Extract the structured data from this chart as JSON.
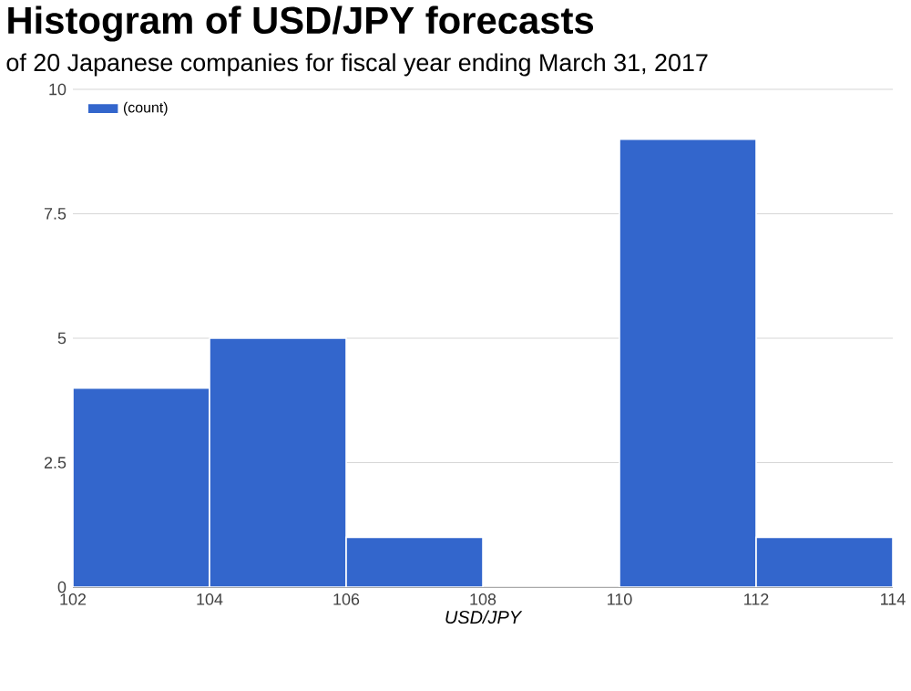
{
  "chart_data": {
    "type": "histogram",
    "title": "Histogram of USD/JPY forecasts",
    "subtitle": "of 20 Japanese companies for fiscal year ending March 31, 2017",
    "xlabel": "USD/JPY",
    "bins": [
      102,
      104,
      106,
      108,
      110,
      112,
      114
    ],
    "series": [
      {
        "name": "(count)",
        "color": "#3366cc",
        "values": [
          4,
          5,
          1,
          0,
          9,
          1
        ]
      }
    ],
    "xlim": [
      102,
      114
    ],
    "xticks": [
      102,
      104,
      106,
      108,
      110,
      112,
      114
    ],
    "ylim": [
      0,
      10
    ],
    "yticks": [
      0,
      {
        "value": 2.5,
        "label": "2.5"
      },
      5,
      {
        "value": 7.5,
        "label": "7.5"
      },
      10
    ],
    "grid": "y",
    "legend": "top left"
  }
}
